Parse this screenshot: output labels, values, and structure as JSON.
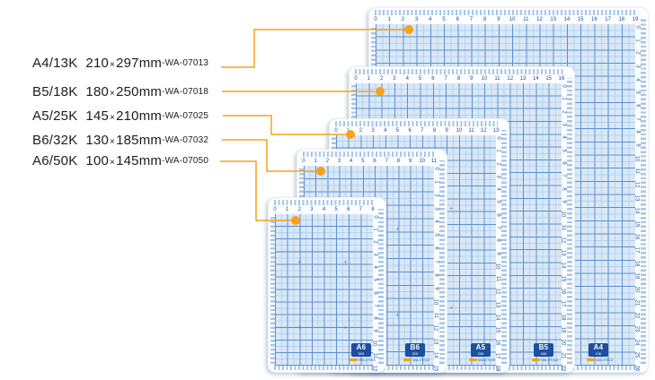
{
  "colors": {
    "accent_orange": "#F6A21C",
    "mat_surface": "#D9E8F7",
    "grid_major": "#5E8FCE",
    "grid_minor": "#B7D2EE",
    "tick_blue": "#A6C6E7",
    "ruler_text": "#1D4F9E",
    "badge_bg": "#1D4FA0",
    "label_text": "#1C1C1C"
  },
  "labels": [
    {
      "name": "A4/13K",
      "width": "210",
      "times": "×",
      "height": "297",
      "unit": "mm",
      "dash": "-",
      "code": "WA-07013",
      "mat": "a4"
    },
    {
      "name": "B5/18K",
      "width": "180",
      "times": "×",
      "height": "250",
      "unit": "mm",
      "dash": "-",
      "code": "WA-07018",
      "mat": "b5"
    },
    {
      "name": "A5/25K",
      "width": "145",
      "times": "×",
      "height": "210",
      "unit": "mm",
      "dash": "-",
      "code": "WA-07025",
      "mat": "a5"
    },
    {
      "name": "B6/32K",
      "width": "130",
      "times": "×",
      "height": "185",
      "unit": "mm",
      "dash": "-",
      "code": "WA-07032",
      "mat": "b6"
    },
    {
      "name": "A6/50K",
      "width": "100",
      "times": "×",
      "height": "145",
      "unit": "mm",
      "dash": "-",
      "code": "WA-07050",
      "mat": "a6"
    }
  ],
  "mats": [
    {
      "id": "a4",
      "badge": "A4",
      "badge_sub": "13K",
      "code": "WA-07013",
      "top_tick_max": 19,
      "side_tick_max": 26
    },
    {
      "id": "b5",
      "badge": "B5",
      "badge_sub": "18K",
      "code": "WA-07018",
      "top_tick_max": 16,
      "side_tick_max": 22
    },
    {
      "id": "a5",
      "badge": "A5",
      "badge_sub": "25K",
      "code": "WA-07025",
      "top_tick_max": 13,
      "side_tick_max": 18
    },
    {
      "id": "b6",
      "badge": "B6",
      "badge_sub": "32K",
      "code": "WA-07032",
      "top_tick_max": 11,
      "side_tick_max": 15
    },
    {
      "id": "a6",
      "badge": "A6",
      "badge_sub": "50K",
      "code": "WA-07050",
      "top_tick_max": 8,
      "side_tick_max": 12
    }
  ]
}
